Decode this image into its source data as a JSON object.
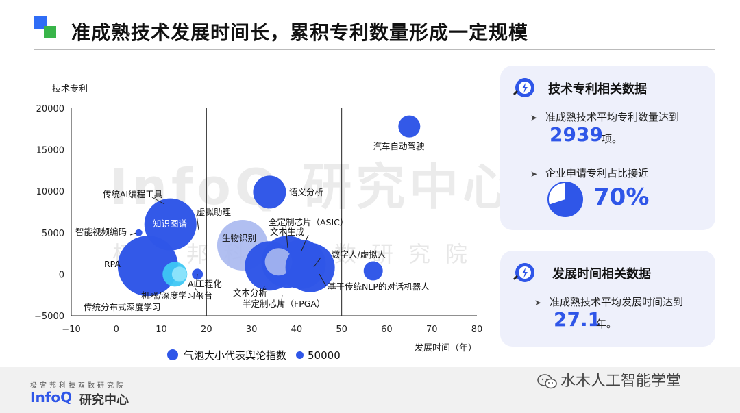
{
  "header": {
    "title": "准成熟技术发展时间长，累积专利数量形成一定规模"
  },
  "watermark": {
    "main": "InfoQ 研究中心",
    "sub": "极客邦科技双数研究院"
  },
  "chart_data": {
    "type": "scatter",
    "xlabel": "发展时间（年）",
    "ylabel": "技术专利",
    "xlim": [
      -10,
      80
    ],
    "ylim": [
      -5000,
      20000
    ],
    "x_ticks": [
      "−10",
      "0",
      "10",
      "20",
      "30",
      "40",
      "50",
      "60",
      "70",
      "80"
    ],
    "y_ticks": [
      "−5000",
      "0",
      "5000",
      "10000",
      "15000",
      "20000"
    ],
    "reference_lines": {
      "x": [
        20,
        50
      ],
      "y": 7500
    },
    "bubbles": [
      {
        "label": "汽车自动驾驶",
        "x": 65,
        "y": 17800,
        "size": 16,
        "color": "#2f56e8"
      },
      {
        "label": "语义分析",
        "x": 34,
        "y": 9900,
        "size": 24,
        "color": "#2f56e8"
      },
      {
        "label": "知识图谱",
        "x": 12,
        "y": 6000,
        "size": 38,
        "color": "#2f56e8"
      },
      {
        "label": "智能视频编码",
        "x": 5,
        "y": 5000,
        "size": 5,
        "color": "#2f56e8"
      },
      {
        "label": "RPA",
        "x": 7,
        "y": 1000,
        "size": 44,
        "color": "#2f56e8"
      },
      {
        "label": "机器/深度学习平台",
        "x": 13,
        "y": 0,
        "size": 18,
        "color": "#3ec8f4"
      },
      {
        "label": "传统分布式深度学习",
        "x": 14,
        "y": 0,
        "size": 11,
        "color": "#8ee4fb"
      },
      {
        "label": "AI工程化",
        "x": 18,
        "y": 0,
        "size": 8,
        "color": "#2f56e8"
      },
      {
        "label": "虚拟助理",
        "x": 28,
        "y": 3500,
        "size": 37,
        "color": "#a9b8f0"
      },
      {
        "label": "文本分析",
        "x": 34,
        "y": 1000,
        "size": 36,
        "color": "#2f56e8"
      },
      {
        "label": "全定制芯片（ASIC）",
        "x": 38,
        "y": 1500,
        "size": 38,
        "color": "#2f56e8"
      },
      {
        "label": "文本生成",
        "x": 41,
        "y": 1200,
        "size": 36,
        "color": "#2f56e8"
      },
      {
        "label": "半定制芯片（FPGA）",
        "x": 36,
        "y": 1500,
        "size": 20,
        "color": "#a9b8f0"
      },
      {
        "label": "数字人/虚拟人",
        "x": 43,
        "y": 800,
        "size": 36,
        "color": "#2f56e8"
      },
      {
        "label": "基于传统NLP的对话机器人",
        "x": 57,
        "y": 400,
        "size": 14,
        "color": "#2f56e8"
      },
      {
        "label": "生物识别",
        "x": 28,
        "y": 3500,
        "size": 0,
        "color": "#a9b8f0"
      },
      {
        "label": "传统AI编程工具",
        "x": 12,
        "y": 6000,
        "size": 0,
        "color": "#2f56e8"
      }
    ],
    "legend": {
      "bubble_label": "气泡大小代表舆论指数",
      "scale_value": "50000"
    }
  },
  "panel1": {
    "title": "技术专利相关数据",
    "bullet1": "准成熟技术平均专利数量达到",
    "num1": "2939",
    "unit1": "项。",
    "bullet2": "企业申请专利占比接近",
    "num2": "70%",
    "pie_fraction": 0.7
  },
  "panel2": {
    "title": "发展时间相关数据",
    "bullet1": "准成熟技术平均发展时间达到",
    "num1": "27.1",
    "unit1": "年。"
  },
  "footer": {
    "small": "极客邦科技双数研究院",
    "brand": "InfoQ",
    "brand2": "研究中心",
    "wechat": "水木人工智能学堂"
  },
  "colors": {
    "accent": "#2f56e8",
    "panel_bg": "#eef0fb"
  }
}
